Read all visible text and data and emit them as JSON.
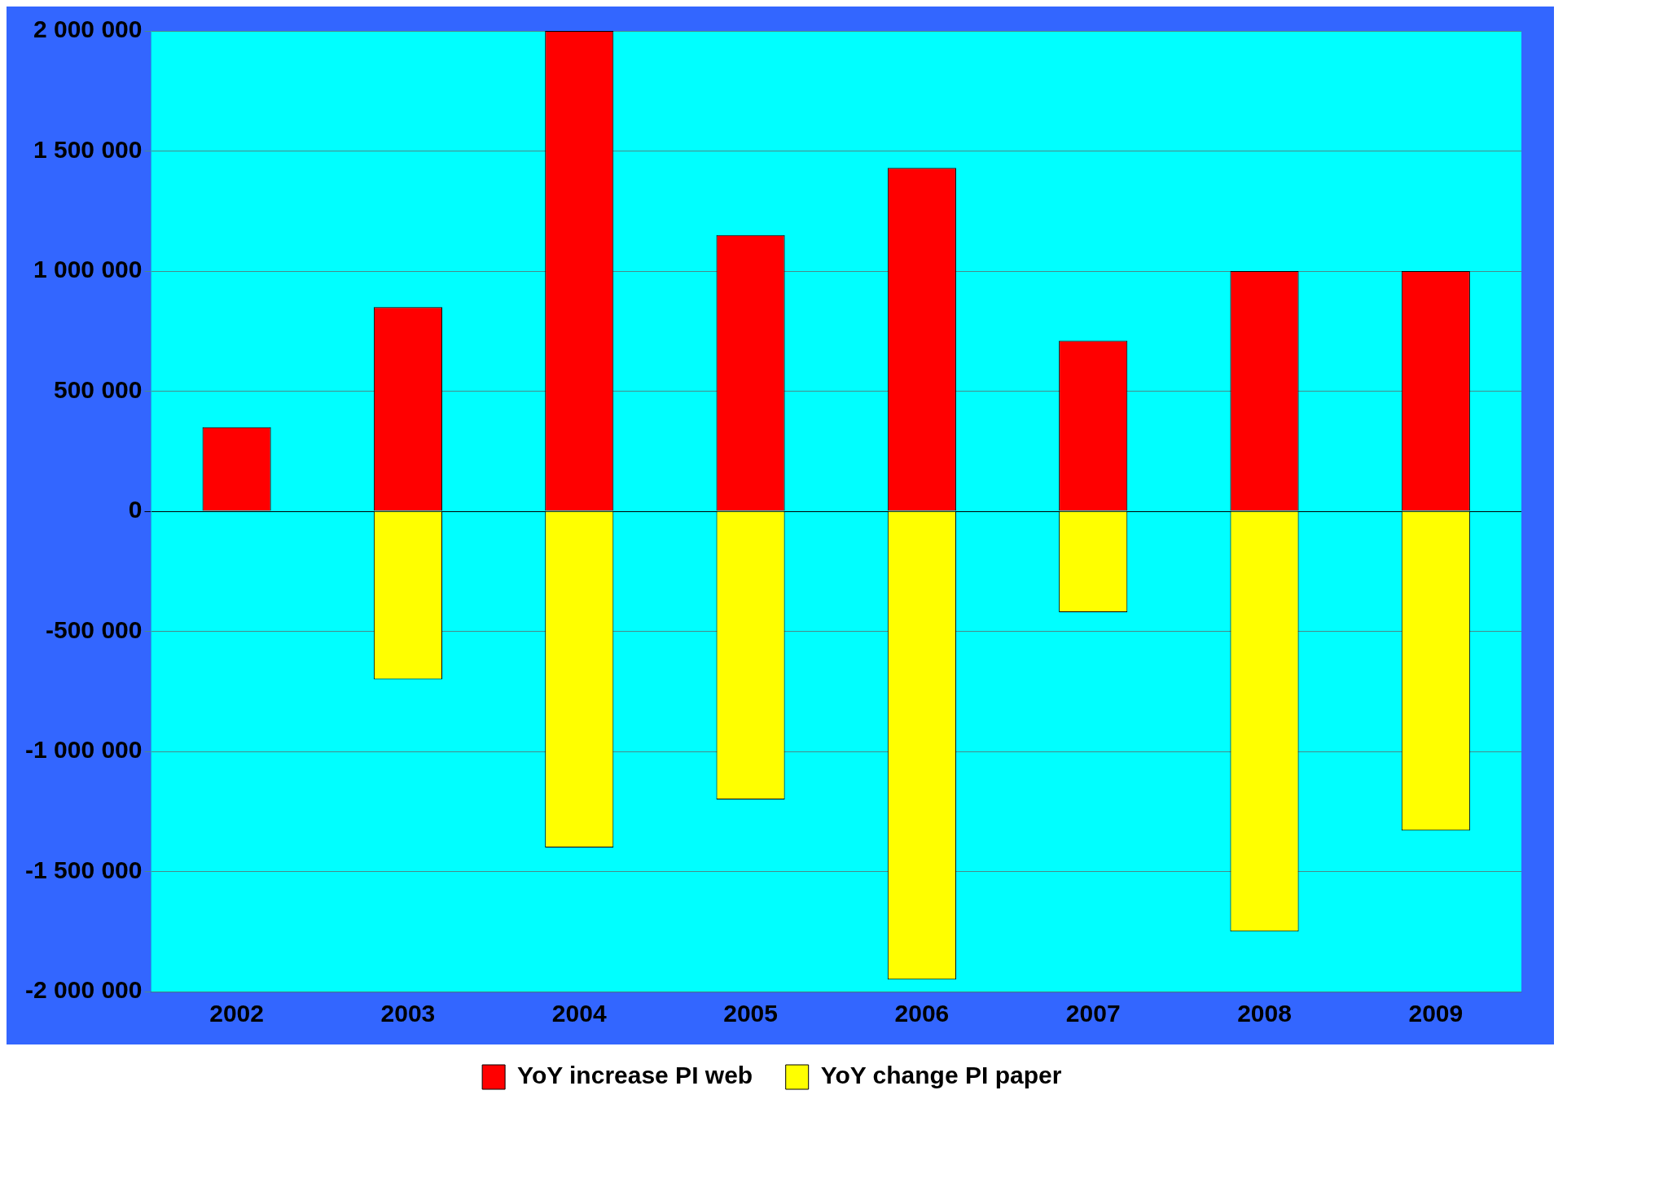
{
  "chart_data": {
    "type": "bar",
    "stacked": true,
    "categories": [
      "2002",
      "2003",
      "2004",
      "2005",
      "2006",
      "2007",
      "2008",
      "2009"
    ],
    "series": [
      {
        "name": "YoY increase PI web",
        "color": "#ff0000",
        "values": [
          350000,
          850000,
          2000000,
          1150000,
          1430000,
          710000,
          1000000,
          1000000
        ]
      },
      {
        "name": "YoY change PI paper",
        "color": "#ffff00",
        "values": [
          0,
          -700000,
          -1400000,
          -1200000,
          -1950000,
          -420000,
          -1750000,
          -1330000
        ]
      }
    ],
    "ylim": [
      -2000000,
      2000000
    ],
    "yticks": [
      {
        "value": -2000000,
        "label": "-2 000 000"
      },
      {
        "value": -1500000,
        "label": "-1 500 000"
      },
      {
        "value": -1000000,
        "label": "-1 000 000"
      },
      {
        "value": -500000,
        "label": "-500 000"
      },
      0,
      {
        "value": 500000,
        "label": "500 000"
      },
      {
        "value": 1000000,
        "label": "1 000 000"
      },
      {
        "value": 1500000,
        "label": "1 500 000"
      },
      {
        "value": 2000000,
        "label": "2 000 000"
      }
    ],
    "grid": "y",
    "legend": "bottom"
  }
}
